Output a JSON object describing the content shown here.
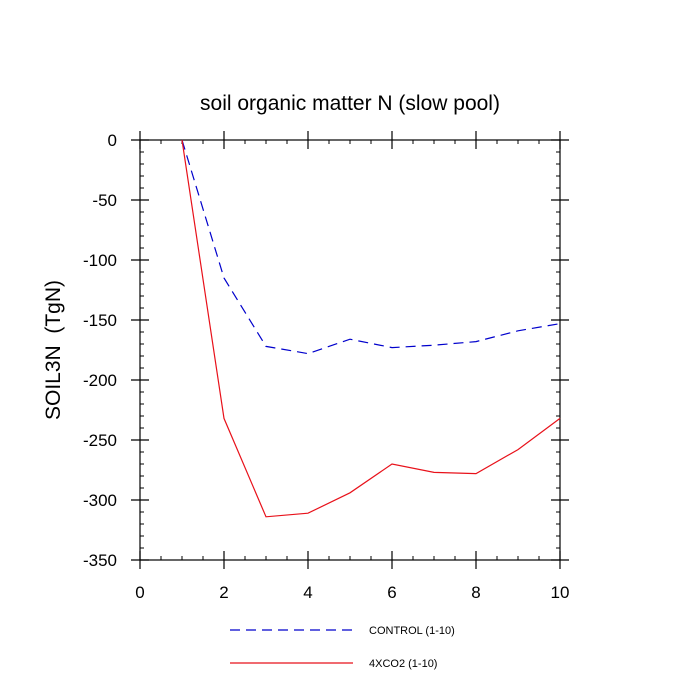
{
  "chart_data": {
    "type": "line",
    "title": "soil organic matter N (slow pool)",
    "xlabel": "",
    "ylabel": "SOIL3N  (TgN)",
    "xlim": [
      0,
      10
    ],
    "ylim": [
      -350,
      0
    ],
    "x_ticks": [
      0,
      2,
      4,
      6,
      8,
      10
    ],
    "y_ticks": [
      0,
      -50,
      -100,
      -150,
      -200,
      -250,
      -300,
      -350
    ],
    "x_tick_labels": [
      "0",
      "2",
      "4",
      "6",
      "8",
      "10"
    ],
    "y_tick_labels": [
      "0",
      "-50",
      "-100",
      "-150",
      "-200",
      "-250",
      "-300",
      "-350"
    ],
    "grid": false,
    "legend_position": "bottom-center",
    "series": [
      {
        "name": "CONTROL (1-10)",
        "color": "#0000cc",
        "dash": "dashed",
        "x": [
          1,
          2,
          3,
          4,
          5,
          6,
          7,
          8,
          9,
          10
        ],
        "values": [
          0,
          -115,
          -172,
          -178,
          -166,
          -173,
          -171,
          -168,
          -159,
          -153
        ]
      },
      {
        "name": "4XCO2 (1-10)",
        "color": "#e8111a",
        "dash": "solid",
        "x": [
          1,
          2,
          3,
          4,
          5,
          6,
          7,
          8,
          9,
          10
        ],
        "values": [
          0,
          -232,
          -314,
          -311,
          -294,
          -270,
          -277,
          -278,
          -258,
          -232
        ]
      }
    ]
  }
}
